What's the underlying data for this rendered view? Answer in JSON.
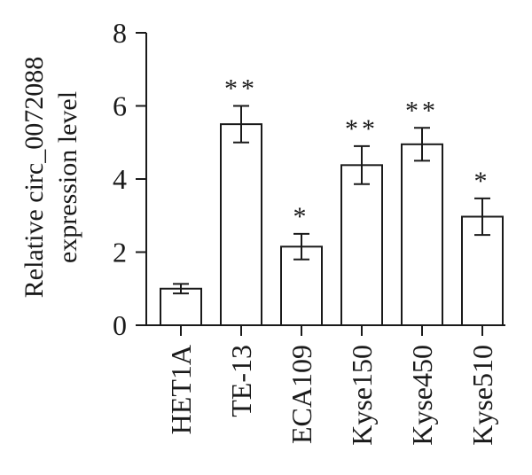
{
  "chart_data": {
    "type": "bar",
    "categories": [
      "HET1A",
      "TE-13",
      "ECA109",
      "Kyse150",
      "Kyse450",
      "Kyse510"
    ],
    "values": [
      1.0,
      5.5,
      2.15,
      4.38,
      4.95,
      2.97
    ],
    "errors": [
      0.13,
      0.5,
      0.35,
      0.52,
      0.45,
      0.5
    ],
    "significance": [
      "",
      "**",
      "*",
      "**",
      "**",
      "*"
    ],
    "title": "",
    "xlabel": "",
    "ylabel_lines": [
      "Relative circ_0072088",
      "expression level"
    ],
    "ylim": [
      0,
      8
    ],
    "yticks": [
      "0",
      "2",
      "4",
      "6",
      "8"
    ],
    "grid": false,
    "legend": "none"
  }
}
